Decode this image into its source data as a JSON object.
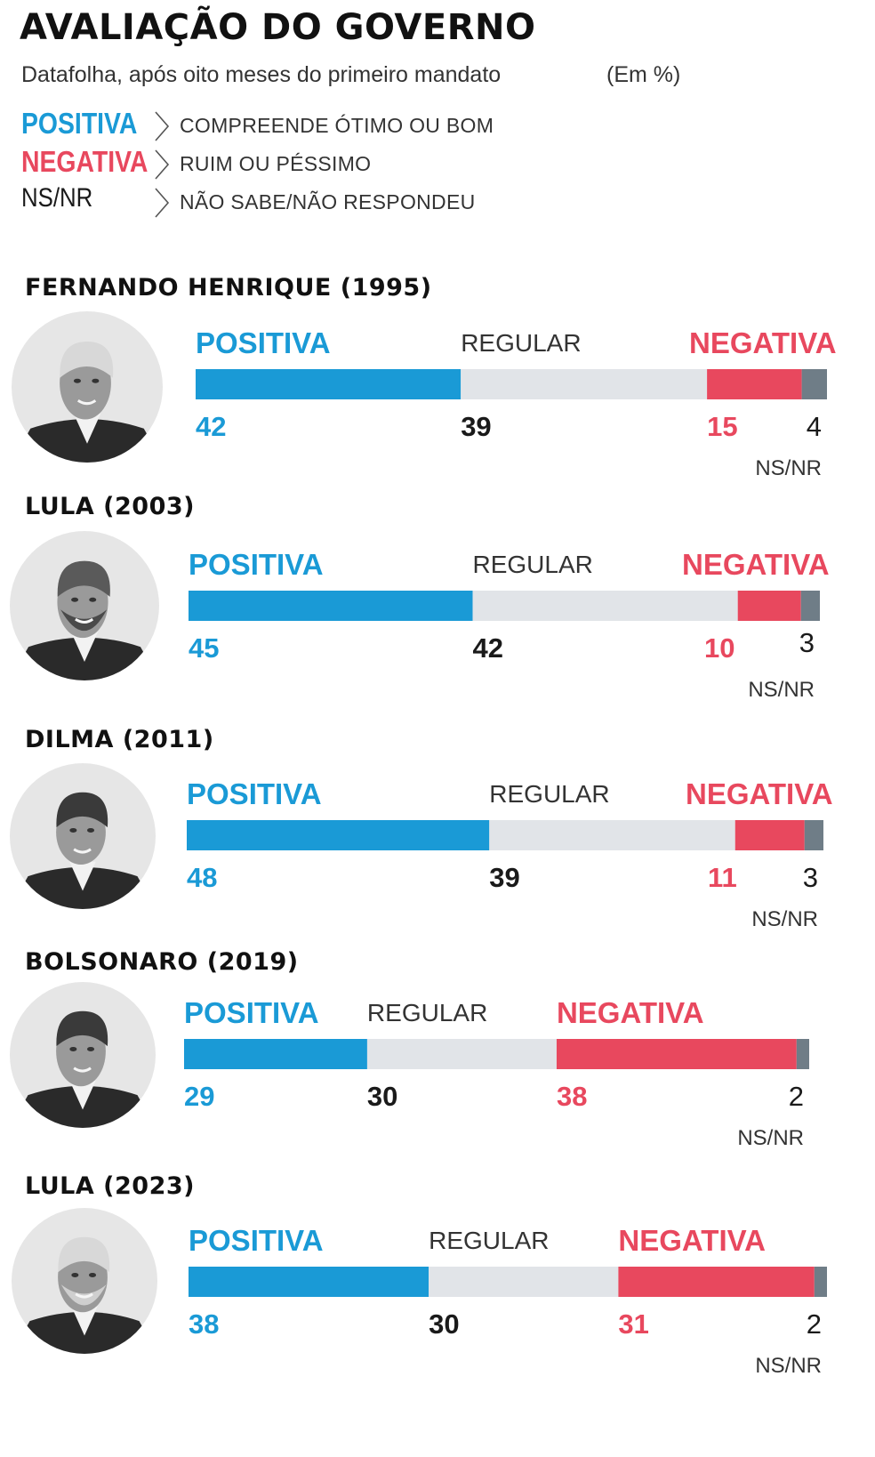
{
  "title": "AVALIAÇÃO DO GOVERNO",
  "subtitle": "Datafolha, após oito meses do primeiro mandato",
  "unit": "(Em %)",
  "legend": [
    {
      "key": "POSITIVA",
      "desc": "COMPREENDE ÓTIMO OU BOM",
      "color": "#1a9ad6"
    },
    {
      "key": "NEGATIVA",
      "desc": "RUIM OU PÉSSIMO",
      "color": "#e8485e"
    },
    {
      "key": "NS/NR",
      "desc": "NÃO SABE/NÃO RESPONDEU",
      "color": "#1a1a1a"
    }
  ],
  "labels": {
    "positive": "POSITIVA",
    "regular": "REGULAR",
    "negative": "NEGATIVA",
    "nsnr": "NS/NR"
  },
  "colors": {
    "positive": "#1a9ad6",
    "regular": "#e1e4e8",
    "negative": "#e8485e",
    "nsnr": "#6f7d87"
  },
  "chart_data": [
    {
      "type": "bar",
      "title": "FERNANDO HENRIQUE (1995)",
      "categories": [
        "POSITIVA",
        "REGULAR",
        "NEGATIVA",
        "NS/NR"
      ],
      "values": [
        42,
        39,
        15,
        4
      ]
    },
    {
      "type": "bar",
      "title": "LULA (2003)",
      "categories": [
        "POSITIVA",
        "REGULAR",
        "NEGATIVA",
        "NS/NR"
      ],
      "values": [
        45,
        42,
        10,
        3
      ]
    },
    {
      "type": "bar",
      "title": "DILMA (2011)",
      "categories": [
        "POSITIVA",
        "REGULAR",
        "NEGATIVA",
        "NS/NR"
      ],
      "values": [
        48,
        39,
        11,
        3
      ]
    },
    {
      "type": "bar",
      "title": "BOLSONARO (2019)",
      "categories": [
        "POSITIVA",
        "REGULAR",
        "NEGATIVA",
        "NS/NR"
      ],
      "values": [
        29,
        30,
        38,
        2
      ]
    },
    {
      "type": "bar",
      "title": "LULA (2023)",
      "categories": [
        "POSITIVA",
        "REGULAR",
        "NEGATIVA",
        "NS/NR"
      ],
      "values": [
        38,
        30,
        31,
        2
      ]
    }
  ]
}
